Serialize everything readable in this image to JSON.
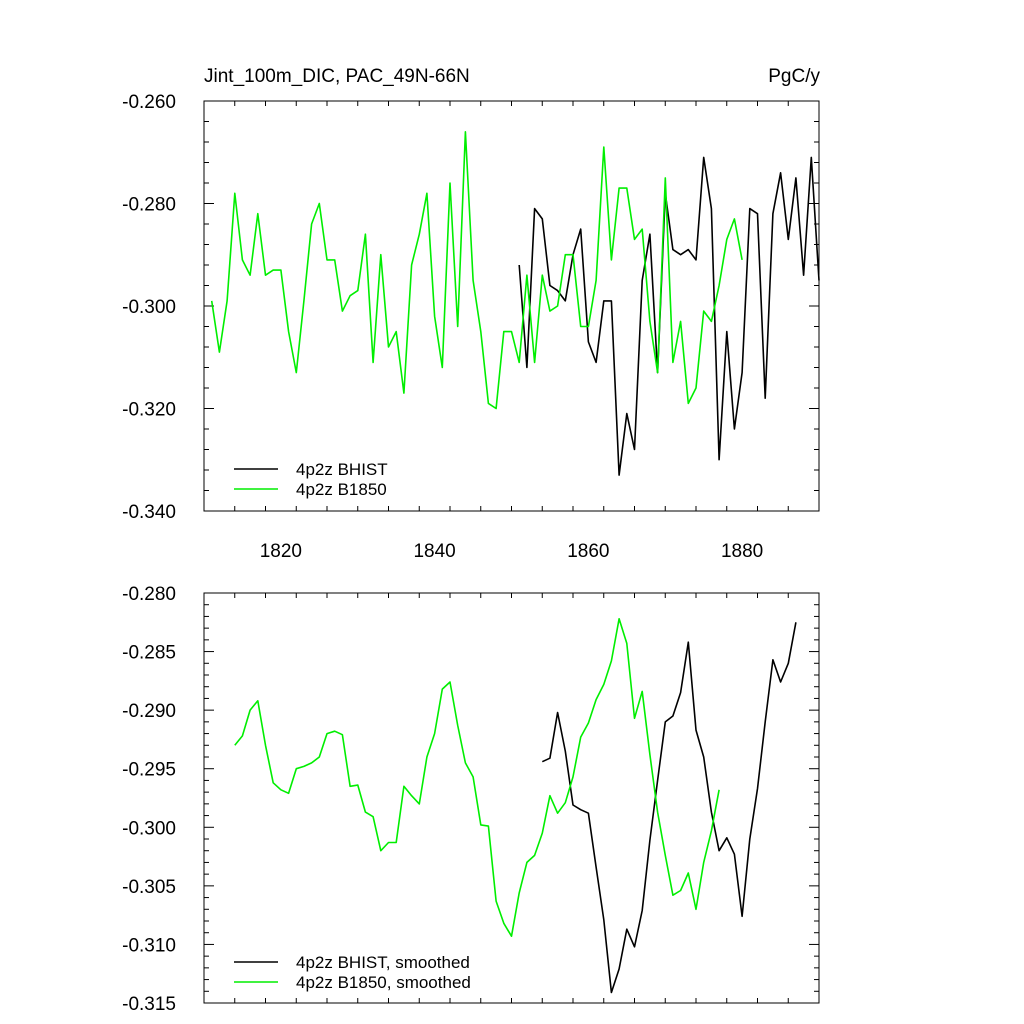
{
  "colors": {
    "bhist": "#000000",
    "b1850": "#00ee00"
  },
  "chart_data": [
    {
      "type": "line",
      "title": "Jint_100m_DIC, PAC_49N-66N",
      "units": "PgC/y",
      "xlim": [
        1810,
        1890
      ],
      "ylim": [
        -0.34,
        -0.26
      ],
      "x_ticks": [
        1820,
        1840,
        1860,
        1880
      ],
      "x_tick_labels": [
        "1820",
        "1840",
        "1860",
        "1880"
      ],
      "y_ticks": [
        -0.26,
        -0.28,
        -0.3,
        -0.32,
        -0.34
      ],
      "y_tick_labels": [
        "-0.260",
        "-0.280",
        "-0.300",
        "-0.320",
        "-0.340"
      ],
      "legend_position": "bottom-left",
      "series": [
        {
          "name": "4p2z BHIST",
          "color_key": "bhist",
          "x_start": 1851,
          "values": [
            -0.292,
            -0.312,
            -0.281,
            -0.283,
            -0.296,
            -0.297,
            -0.299,
            -0.29,
            -0.285,
            -0.307,
            -0.311,
            -0.299,
            -0.299,
            -0.333,
            -0.321,
            -0.328,
            -0.295,
            -0.286,
            -0.313,
            -0.278,
            -0.289,
            -0.29,
            -0.289,
            -0.291,
            -0.271,
            -0.281,
            -0.33,
            -0.305,
            -0.324,
            -0.313,
            -0.281,
            -0.282,
            -0.318,
            -0.282,
            -0.274,
            -0.287,
            -0.275,
            -0.294,
            -0.271,
            -0.295
          ]
        },
        {
          "name": "4p2z B1850",
          "color_key": "b1850",
          "x_start": 1811,
          "values": [
            -0.299,
            -0.309,
            -0.299,
            -0.278,
            -0.291,
            -0.294,
            -0.282,
            -0.294,
            -0.293,
            -0.293,
            -0.305,
            -0.313,
            -0.299,
            -0.284,
            -0.28,
            -0.291,
            -0.291,
            -0.301,
            -0.298,
            -0.297,
            -0.286,
            -0.311,
            -0.29,
            -0.308,
            -0.305,
            -0.317,
            -0.292,
            -0.286,
            -0.278,
            -0.302,
            -0.312,
            -0.276,
            -0.304,
            -0.266,
            -0.295,
            -0.305,
            -0.319,
            -0.32,
            -0.305,
            -0.305,
            -0.311,
            -0.294,
            -0.311,
            -0.294,
            -0.301,
            -0.3,
            -0.29,
            -0.29,
            -0.304,
            -0.304,
            -0.295,
            -0.269,
            -0.291,
            -0.277,
            -0.277,
            -0.287,
            -0.285,
            -0.303,
            -0.313,
            -0.275,
            -0.311,
            -0.303,
            -0.319,
            -0.316,
            -0.301,
            -0.303,
            -0.296,
            -0.287,
            -0.283,
            -0.291
          ]
        }
      ]
    },
    {
      "type": "line",
      "xlim": [
        1810,
        1890
      ],
      "ylim": [
        -0.315,
        -0.28
      ],
      "x_ticks": [
        1820,
        1840,
        1860,
        1880
      ],
      "y_ticks": [
        -0.28,
        -0.285,
        -0.29,
        -0.295,
        -0.3,
        -0.305,
        -0.31,
        -0.315
      ],
      "y_tick_labels": [
        "-0.280",
        "-0.285",
        "-0.290",
        "-0.295",
        "-0.300",
        "-0.305",
        "-0.310",
        "-0.315"
      ],
      "legend_position": "bottom-left",
      "series": [
        {
          "name": "4p2z BHIST, smoothed",
          "color_key": "bhist",
          "x_start": 1854,
          "values": [
            -0.2944,
            -0.2941,
            -0.2902,
            -0.2935,
            -0.2981,
            -0.2985,
            -0.2988,
            -0.3034,
            -0.3079,
            -0.3141,
            -0.3121,
            -0.3087,
            -0.3102,
            -0.3071,
            -0.3011,
            -0.296,
            -0.291,
            -0.2905,
            -0.2885,
            -0.2842,
            -0.2917,
            -0.294,
            -0.2987,
            -0.302,
            -0.3009,
            -0.3023,
            -0.3076,
            -0.301,
            -0.2967,
            -0.291,
            -0.2857,
            -0.2876,
            -0.286,
            -0.2825
          ]
        },
        {
          "name": "4p2z B1850, smoothed",
          "color_key": "b1850",
          "x_start": 1814,
          "values": [
            -0.293,
            -0.2922,
            -0.29,
            -0.2892,
            -0.293,
            -0.2962,
            -0.2968,
            -0.2971,
            -0.295,
            -0.2948,
            -0.2945,
            -0.294,
            -0.292,
            -0.2918,
            -0.2921,
            -0.2965,
            -0.2964,
            -0.2987,
            -0.2991,
            -0.302,
            -0.3013,
            -0.3013,
            -0.2965,
            -0.2973,
            -0.298,
            -0.294,
            -0.292,
            -0.2882,
            -0.2876,
            -0.2913,
            -0.2945,
            -0.2957,
            -0.2998,
            -0.2999,
            -0.3063,
            -0.3082,
            -0.3093,
            -0.3056,
            -0.303,
            -0.3024,
            -0.3005,
            -0.2973,
            -0.2988,
            -0.2979,
            -0.2957,
            -0.2923,
            -0.2911,
            -0.2891,
            -0.2878,
            -0.2858,
            -0.2822,
            -0.2843,
            -0.2907,
            -0.2884,
            -0.2938,
            -0.2987,
            -0.3024,
            -0.3058,
            -0.3054,
            -0.3039,
            -0.307,
            -0.303,
            -0.3003,
            -0.2968
          ]
        }
      ]
    }
  ]
}
